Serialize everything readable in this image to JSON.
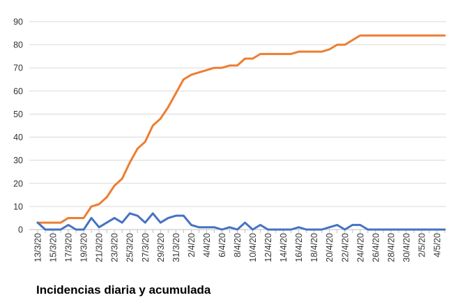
{
  "caption": "Incidencias diaria y acumulada",
  "colors": {
    "daily": "#4472C4",
    "cumulative": "#ED7D31",
    "grid": "#D9D9D9",
    "axis": "#BFBFBF"
  },
  "chart_data": {
    "type": "line",
    "title": "",
    "xlabel": "",
    "ylabel": "",
    "ylim": [
      0,
      90
    ],
    "yticks": [
      0,
      10,
      20,
      30,
      40,
      50,
      60,
      70,
      80,
      90
    ],
    "grid": true,
    "legend": "none",
    "categories": [
      "13/3/20",
      "14/3/20",
      "15/3/20",
      "16/3/20",
      "17/3/20",
      "18/3/20",
      "19/3/20",
      "20/3/20",
      "21/3/20",
      "22/3/20",
      "23/3/20",
      "24/3/20",
      "25/3/20",
      "26/3/20",
      "27/3/20",
      "28/3/20",
      "29/3/20",
      "30/3/20",
      "31/3/20",
      "1/4/20",
      "2/4/20",
      "3/4/20",
      "4/4/20",
      "5/4/20",
      "6/4/20",
      "7/4/20",
      "8/4/20",
      "9/4/20",
      "10/4/20",
      "11/4/20",
      "12/4/20",
      "13/4/20",
      "14/4/20",
      "15/4/20",
      "16/4/20",
      "17/4/20",
      "18/4/20",
      "19/4/20",
      "20/4/20",
      "21/4/20",
      "22/4/20",
      "23/4/20",
      "24/4/20",
      "25/4/20",
      "26/4/20",
      "27/4/20",
      "28/4/20",
      "29/4/20",
      "30/4/20",
      "1/5/20",
      "2/5/20",
      "3/5/20",
      "4/5/20",
      "5/5/20"
    ],
    "visible_tick_labels": [
      "13/3/20",
      "15/3/20",
      "17/3/20",
      "19/3/20",
      "21/3/20",
      "23/3/20",
      "25/3/20",
      "27/3/20",
      "29/3/20",
      "31/3/20",
      "2/4/20",
      "4/4/20",
      "6/4/20",
      "8/4/20",
      "10/4/20",
      "12/4/20",
      "14/4/20",
      "16/4/20",
      "18/4/20",
      "20/4/20",
      "22/4/20",
      "24/4/20",
      "26/4/20",
      "28/4/20",
      "30/4/20",
      "2/5/20",
      "4/5/20"
    ],
    "series": [
      {
        "color": "#4472C4",
        "values": [
          3,
          0,
          0,
          0,
          2,
          0,
          0,
          5,
          1,
          3,
          5,
          3,
          7,
          6,
          3,
          7,
          3,
          5,
          6,
          6,
          2,
          1,
          1,
          1,
          0,
          1,
          0,
          3,
          0,
          2,
          0,
          0,
          0,
          0,
          1,
          0,
          0,
          0,
          1,
          2,
          0,
          2,
          2,
          0,
          0,
          0,
          0,
          0,
          0,
          0,
          0,
          0,
          0,
          0
        ]
      },
      {
        "color": "#ED7D31",
        "values": [
          3,
          3,
          3,
          3,
          5,
          5,
          5,
          10,
          11,
          14,
          19,
          22,
          29,
          35,
          38,
          45,
          48,
          53,
          59,
          65,
          67,
          68,
          69,
          70,
          70,
          71,
          71,
          74,
          74,
          76,
          76,
          76,
          76,
          76,
          77,
          77,
          77,
          77,
          78,
          80,
          80,
          82,
          84,
          84,
          84,
          84,
          84,
          84,
          84,
          84,
          84,
          84,
          84,
          84
        ]
      }
    ]
  }
}
